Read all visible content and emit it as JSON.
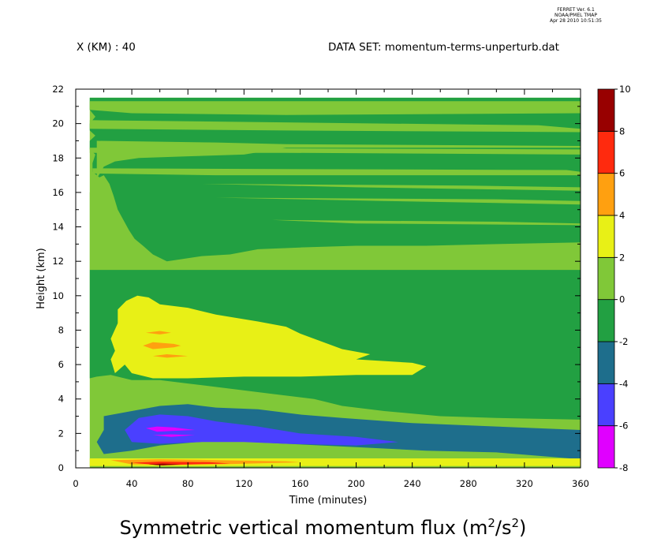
{
  "header": {
    "ferret_lines": [
      "FERRET Ver. 6.1",
      "NOAA/PMEL TMAP",
      "Apr 28 2010 10:51:35"
    ],
    "left": "X (KM) : 40",
    "right": "DATA SET: momentum-terms-unperturb.dat"
  },
  "chart_data": {
    "type": "heatmap",
    "title_parts": [
      "Symmetric vertical momentum flux (m",
      "2",
      "/s",
      "2",
      ")"
    ],
    "xlabel": "Time (minutes)",
    "ylabel": "Height (km)",
    "xlim": [
      0,
      360
    ],
    "ylim": [
      0,
      22
    ],
    "data_time_range": [
      10,
      360
    ],
    "data_height_range": [
      0,
      21.5
    ],
    "x_ticks": [
      0,
      40,
      80,
      120,
      160,
      200,
      240,
      280,
      320,
      360
    ],
    "y_ticks": [
      0,
      2,
      4,
      6,
      8,
      10,
      12,
      14,
      16,
      18,
      20,
      22
    ],
    "colorbar": {
      "levels": [
        -8,
        -6,
        -4,
        -2,
        0,
        2,
        4,
        6,
        8,
        10
      ],
      "labels": [
        "-8",
        "-6",
        "-4",
        "-2",
        "0",
        "2",
        "4",
        "6",
        "8",
        "10"
      ],
      "colors": [
        "#e000ff",
        "#4a40ff",
        "#1e6e8c",
        "#22a042",
        "#80c838",
        "#e8f016",
        "#ffa010",
        "#ff2a0e",
        "#980000"
      ]
    },
    "regions": [
      {
        "level": "0 to 2",
        "points": [
          [
            10,
            21.5
          ],
          [
            360,
            21.5
          ],
          [
            360,
            0
          ],
          [
            10,
            0
          ]
        ]
      },
      {
        "level": "-2 to 0",
        "points": [
          [
            10,
            21.5
          ],
          [
            360,
            21.5
          ],
          [
            360,
            2.8
          ],
          [
            300,
            2.9
          ],
          [
            260,
            3.0
          ],
          [
            220,
            3.3
          ],
          [
            190,
            3.6
          ],
          [
            170,
            4.0
          ],
          [
            140,
            4.3
          ],
          [
            110,
            4.6
          ],
          [
            80,
            4.9
          ],
          [
            60,
            5.1
          ],
          [
            40,
            5.1
          ],
          [
            25,
            5.4
          ],
          [
            15,
            5.3
          ],
          [
            10,
            5.2
          ],
          [
            10,
            11.5
          ],
          [
            14,
            11.8
          ],
          [
            17,
            12.5
          ],
          [
            14,
            13.0
          ],
          [
            18,
            13.6
          ],
          [
            14,
            14.1
          ],
          [
            18,
            14.7
          ],
          [
            14,
            15.2
          ],
          [
            18,
            15.8
          ],
          [
            14,
            16.3
          ],
          [
            18,
            16.8
          ],
          [
            12,
            17.2
          ],
          [
            12,
            17.7
          ],
          [
            14,
            18.2
          ],
          [
            10,
            18.5
          ],
          [
            10,
            19.0
          ],
          [
            14,
            19.3
          ],
          [
            10,
            19.6
          ],
          [
            10,
            20.0
          ],
          [
            14,
            20.4
          ],
          [
            10,
            20.8
          ]
        ]
      },
      {
        "level": "0 to 2",
        "points": [
          [
            10,
            21.3
          ],
          [
            360,
            21.3
          ],
          [
            360,
            20.6
          ],
          [
            150,
            20.5
          ],
          [
            40,
            20.6
          ],
          [
            10,
            20.8
          ]
        ]
      },
      {
        "level": "0 to 2",
        "points": [
          [
            10,
            20.2
          ],
          [
            330,
            19.9
          ],
          [
            360,
            19.7
          ],
          [
            360,
            19.5
          ],
          [
            150,
            19.6
          ],
          [
            10,
            19.7
          ]
        ]
      },
      {
        "level": "0 to 2",
        "points": [
          [
            10,
            18.6
          ],
          [
            360,
            18.5
          ],
          [
            360,
            18.2
          ],
          [
            150,
            18.3
          ],
          [
            10,
            18.3
          ]
        ]
      },
      {
        "level": "0 to 2",
        "points": [
          [
            12,
            17.4
          ],
          [
            350,
            17.3
          ],
          [
            360,
            17.2
          ],
          [
            360,
            17.0
          ],
          [
            100,
            17.0
          ],
          [
            12,
            17.1
          ]
        ]
      },
      {
        "level": "0 to 2",
        "points": [
          [
            15,
            16.8
          ],
          [
            20,
            17.5
          ],
          [
            28,
            17.8
          ],
          [
            45,
            18.0
          ],
          [
            80,
            18.1
          ],
          [
            120,
            18.2
          ],
          [
            150,
            18.6
          ],
          [
            220,
            18.6
          ],
          [
            360,
            18.6
          ],
          [
            360,
            18.7
          ],
          [
            150,
            18.8
          ],
          [
            100,
            18.9
          ],
          [
            15,
            19.0
          ]
        ]
      },
      {
        "level": "0 to 2",
        "points": [
          [
            90,
            16.5
          ],
          [
            280,
            16.4
          ],
          [
            360,
            16.3
          ],
          [
            360,
            16.1
          ],
          [
            200,
            16.3
          ]
        ]
      },
      {
        "level": "0 to 2",
        "points": [
          [
            100,
            15.7
          ],
          [
            300,
            15.6
          ],
          [
            360,
            15.5
          ],
          [
            360,
            15.3
          ],
          [
            220,
            15.5
          ]
        ]
      },
      {
        "level": "0 to 2",
        "points": [
          [
            140,
            14.4
          ],
          [
            300,
            14.3
          ],
          [
            360,
            14.2
          ],
          [
            360,
            14.1
          ],
          [
            200,
            14.2
          ]
        ]
      },
      {
        "level": "0 to 2",
        "points": [
          [
            10,
            11.5
          ],
          [
            360,
            11.5
          ],
          [
            360,
            13.1
          ],
          [
            300,
            13.0
          ],
          [
            250,
            12.9
          ],
          [
            200,
            12.9
          ],
          [
            160,
            12.8
          ],
          [
            130,
            12.7
          ],
          [
            110,
            12.4
          ],
          [
            90,
            12.3
          ],
          [
            65,
            12.0
          ],
          [
            55,
            12.4
          ],
          [
            48,
            12.9
          ],
          [
            42,
            13.3
          ],
          [
            38,
            13.8
          ],
          [
            34,
            14.4
          ],
          [
            30,
            15.0
          ],
          [
            27,
            15.8
          ],
          [
            24,
            16.5
          ],
          [
            20,
            17.0
          ],
          [
            15,
            16.8
          ],
          [
            12,
            16.3
          ],
          [
            10,
            16.0
          ]
        ]
      },
      {
        "level": "2 to 4",
        "points": [
          [
            28,
            5.5
          ],
          [
            35,
            6.0
          ],
          [
            40,
            5.5
          ],
          [
            55,
            5.2
          ],
          [
            80,
            5.2
          ],
          [
            120,
            5.3
          ],
          [
            160,
            5.3
          ],
          [
            200,
            5.4
          ],
          [
            240,
            5.4
          ],
          [
            250,
            5.9
          ],
          [
            240,
            6.1
          ],
          [
            200,
            6.3
          ],
          [
            210,
            6.6
          ],
          [
            190,
            6.9
          ],
          [
            170,
            7.5
          ],
          [
            160,
            7.8
          ],
          [
            150,
            8.2
          ],
          [
            130,
            8.5
          ],
          [
            100,
            8.9
          ],
          [
            80,
            9.3
          ],
          [
            60,
            9.5
          ],
          [
            52,
            9.9
          ],
          [
            44,
            10.0
          ],
          [
            36,
            9.7
          ],
          [
            30,
            9.2
          ],
          [
            30,
            8.4
          ],
          [
            25,
            7.5
          ],
          [
            28,
            6.8
          ],
          [
            25,
            6.3
          ]
        ]
      },
      {
        "level": "4 to 6",
        "points": [
          [
            48,
            7.1
          ],
          [
            55,
            7.3
          ],
          [
            70,
            7.2
          ],
          [
            75,
            7.1
          ],
          [
            70,
            7.0
          ],
          [
            55,
            6.9
          ]
        ]
      },
      {
        "level": "4 to 6",
        "points": [
          [
            50,
            7.85
          ],
          [
            60,
            7.95
          ],
          [
            68,
            7.85
          ],
          [
            60,
            7.75
          ]
        ]
      },
      {
        "level": "4 to 6",
        "points": [
          [
            55,
            6.5
          ],
          [
            65,
            6.6
          ],
          [
            80,
            6.5
          ],
          [
            65,
            6.4
          ]
        ]
      },
      {
        "level": "-4 to -2",
        "points": [
          [
            20,
            3.0
          ],
          [
            40,
            3.3
          ],
          [
            60,
            3.6
          ],
          [
            80,
            3.7
          ],
          [
            100,
            3.5
          ],
          [
            130,
            3.4
          ],
          [
            160,
            3.1
          ],
          [
            190,
            2.9
          ],
          [
            240,
            2.6
          ],
          [
            300,
            2.4
          ],
          [
            360,
            2.2
          ],
          [
            360,
            0.5
          ],
          [
            330,
            0.7
          ],
          [
            300,
            0.9
          ],
          [
            250,
            1.0
          ],
          [
            200,
            1.2
          ],
          [
            150,
            1.4
          ],
          [
            100,
            1.6
          ],
          [
            60,
            1.3
          ],
          [
            40,
            1.0
          ],
          [
            20,
            0.8
          ],
          [
            15,
            1.5
          ],
          [
            20,
            2.2
          ]
        ]
      },
      {
        "level": "-6 to -4",
        "points": [
          [
            35,
            2.2
          ],
          [
            45,
            2.9
          ],
          [
            60,
            3.1
          ],
          [
            80,
            3.0
          ],
          [
            100,
            2.7
          ],
          [
            130,
            2.4
          ],
          [
            160,
            2.0
          ],
          [
            200,
            1.8
          ],
          [
            230,
            1.5
          ],
          [
            200,
            1.3
          ],
          [
            150,
            1.4
          ],
          [
            120,
            1.5
          ],
          [
            90,
            1.5
          ],
          [
            60,
            1.4
          ],
          [
            40,
            1.5
          ]
        ]
      },
      {
        "level": "-8 to -6",
        "points": [
          [
            50,
            2.3
          ],
          [
            58,
            2.4
          ],
          [
            70,
            2.35
          ],
          [
            85,
            2.2
          ],
          [
            70,
            2.15
          ],
          [
            58,
            2.1
          ]
        ]
      },
      {
        "level": "-8 to -6",
        "points": [
          [
            55,
            1.9
          ],
          [
            68,
            1.95
          ],
          [
            85,
            1.9
          ],
          [
            68,
            1.8
          ]
        ]
      },
      {
        "level": "2 to 4",
        "points": [
          [
            10,
            0.55
          ],
          [
            360,
            0.55
          ],
          [
            360,
            0.1
          ],
          [
            10,
            0.1
          ]
        ]
      },
      {
        "level": "4 to 6",
        "points": [
          [
            25,
            0.45
          ],
          [
            60,
            0.5
          ],
          [
            100,
            0.45
          ],
          [
            150,
            0.38
          ],
          [
            160,
            0.32
          ],
          [
            100,
            0.2
          ],
          [
            40,
            0.2
          ]
        ]
      },
      {
        "level": "6 to 8",
        "points": [
          [
            40,
            0.3
          ],
          [
            60,
            0.36
          ],
          [
            95,
            0.33
          ],
          [
            110,
            0.25
          ],
          [
            60,
            0.15
          ]
        ]
      },
      {
        "level": "8 to 10",
        "points": [
          [
            52,
            0.2
          ],
          [
            62,
            0.25
          ],
          [
            75,
            0.2
          ],
          [
            62,
            0.14
          ]
        ]
      }
    ]
  }
}
